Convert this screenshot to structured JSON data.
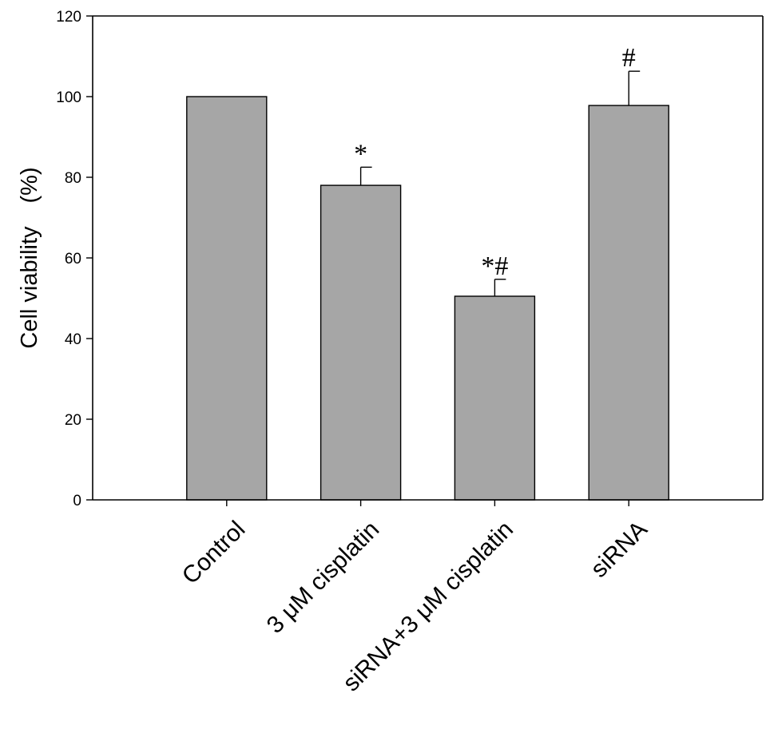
{
  "chart_data": {
    "type": "bar",
    "title": "",
    "xlabel": "",
    "ylabel": "Cell viability　(%)",
    "ylim": [
      0,
      120
    ],
    "yticks": [
      0,
      20,
      40,
      60,
      80,
      100,
      120
    ],
    "grid": false,
    "categories": [
      "Control",
      "3 μM cisplatin",
      "siRNA+3 μM cisplatin",
      "siRNA"
    ],
    "values": [
      100,
      78,
      50.5,
      97.8
    ],
    "errors": [
      0,
      4.5,
      4.2,
      8.5
    ],
    "annotations": [
      "",
      "*",
      "*#",
      "#"
    ],
    "bar_color": "#a6a6a6"
  }
}
